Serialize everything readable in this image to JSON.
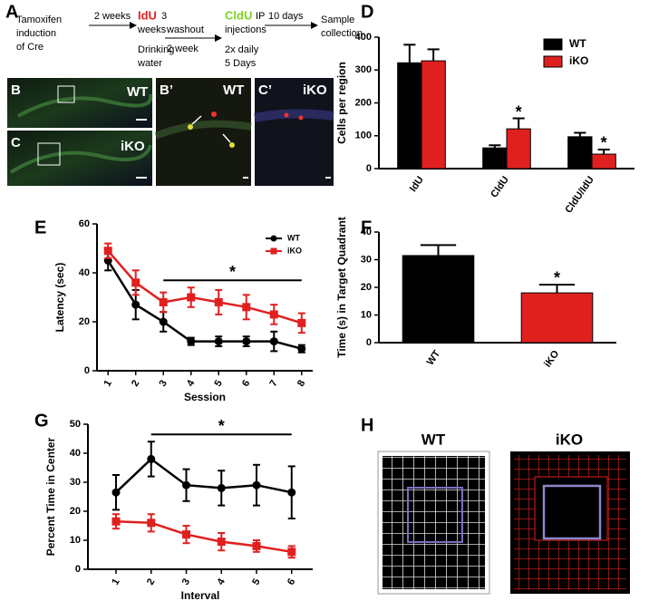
{
  "panel_labels": {
    "a": "A",
    "b": "B",
    "b2": "B’",
    "c": "C",
    "c2": "C’",
    "d": "D",
    "e": "E",
    "f": "F",
    "g": "G",
    "h": "H"
  },
  "timeline": {
    "steps": [
      {
        "lines": [
          "Tamoxifen",
          "induction",
          "of Cre"
        ]
      },
      {
        "marker": "IdU",
        "lines": [
          "3",
          "weeks",
          "Drinking",
          "water"
        ]
      },
      {
        "marker": "CldU",
        "lines": [
          "IP",
          "injections",
          "2x daily",
          "5 Days"
        ]
      },
      {
        "lines": [
          "Sample",
          "collection"
        ]
      }
    ],
    "intervals": [
      {
        "above": "2 weeks"
      },
      {
        "above": "washout",
        "below": "2 week"
      },
      {
        "above": "10 days"
      }
    ]
  },
  "images": {
    "b": "WT",
    "c": "iKO",
    "b2": "WT",
    "c2": "iKO",
    "h_wt": "WT",
    "h_iko": "iKO"
  },
  "chart_data": [
    {
      "type": "bar",
      "y_label": "Cells per region",
      "categories": [
        "IdU",
        "CldU",
        "CldU/IdU"
      ],
      "series": [
        {
          "name": "WT",
          "color": "#000000",
          "values": [
            322,
            63,
            97
          ],
          "errors": [
            55,
            8,
            12
          ]
        },
        {
          "name": "iKO",
          "color": "#e0201f",
          "values": [
            328,
            121,
            44
          ],
          "errors": [
            35,
            32,
            14
          ],
          "significance": [
            null,
            "*",
            "*"
          ]
        }
      ],
      "ylim": [
        0,
        400
      ],
      "yticks": [
        0,
        100,
        200,
        300,
        400
      ],
      "legend": "upper right"
    },
    {
      "type": "line",
      "y_label": "Latency (sec)",
      "x_label": "Session",
      "x": [
        1,
        2,
        3,
        4,
        5,
        6,
        7,
        8
      ],
      "series": [
        {
          "name": "WT",
          "color": "#000000",
          "marker": "circle",
          "values": [
            45,
            27,
            20,
            12,
            12,
            12,
            12,
            9
          ],
          "errors": [
            4,
            6,
            4,
            1.5,
            2,
            2,
            4,
            1.5
          ]
        },
        {
          "name": "iKO",
          "color": "#e0201f",
          "marker": "square",
          "values": [
            49,
            36,
            28,
            30,
            28,
            26,
            23,
            19.5
          ],
          "errors": [
            3,
            5,
            4,
            4,
            5,
            5,
            4,
            4
          ]
        }
      ],
      "xlim": [
        0.6,
        8.4
      ],
      "xticks": [
        1,
        2,
        3,
        4,
        5,
        6,
        7,
        8
      ],
      "ylim": [
        0,
        60
      ],
      "yticks": [
        0,
        20,
        40,
        60
      ],
      "legend": "upper right",
      "bracket": {
        "text": "*",
        "from": 3,
        "to": 8
      }
    },
    {
      "type": "bar",
      "y_label": "Time (s) in Target Quadrant",
      "categories": [
        "WT",
        "iKO"
      ],
      "values": [
        31.5,
        18
      ],
      "colors": [
        "#000000",
        "#e0201f"
      ],
      "errors": [
        3.8,
        3
      ],
      "significance": [
        null,
        "*"
      ],
      "ylim": [
        0,
        40
      ],
      "yticks": [
        0,
        10,
        20,
        30,
        40
      ]
    },
    {
      "type": "line",
      "y_label": "Percent Time in Center",
      "x_label": "Interval",
      "x": [
        1,
        2,
        3,
        4,
        5,
        6
      ],
      "series": [
        {
          "name": "WT",
          "color": "#000000",
          "marker": "circle",
          "values": [
            26.5,
            38,
            29,
            28,
            29,
            26.5
          ],
          "errors": [
            6,
            6,
            5.5,
            6,
            7,
            9
          ]
        },
        {
          "name": "iKO",
          "color": "#e0201f",
          "marker": "square",
          "values": [
            16.5,
            16,
            12,
            9.5,
            8,
            6
          ],
          "errors": [
            2.5,
            3,
            3,
            3,
            2,
            2
          ]
        }
      ],
      "xlim": [
        0.2,
        6.6
      ],
      "xticks": [
        1,
        2,
        3,
        4,
        5,
        6
      ],
      "ylim": [
        0,
        50
      ],
      "yticks": [
        0,
        10,
        20,
        30,
        40,
        50
      ],
      "bracket": {
        "text": "*",
        "from": 2,
        "to": 6
      }
    }
  ]
}
